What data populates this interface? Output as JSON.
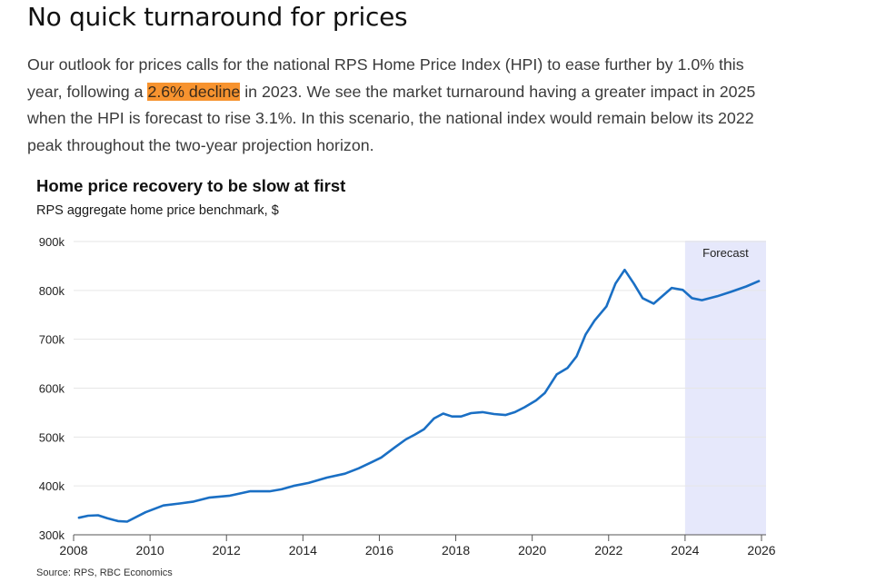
{
  "article": {
    "headline": "No quick turnaround for prices",
    "paragraph": {
      "before": "Our outlook for prices calls for the national RPS Home Price Index (HPI) to ease further by 1.0% this year, following a ",
      "highlight": "2.6% decline",
      "after": " in 2023. We see the market turnaround having a greater impact in 2025 when the HPI is forecast to rise 3.1%. In this scenario, the national index would remain below its 2022 peak throughout the two-year projection horizon."
    },
    "highlight_color": "#F7932F"
  },
  "chart_data": {
    "type": "line",
    "title": "Home price recovery to be slow at first",
    "subtitle": "RPS aggregate home price benchmark, $",
    "source": "Source: RPS, RBC Economics",
    "xlabel": "",
    "ylabel": "",
    "xlim": [
      2008,
      2026
    ],
    "ylim": [
      300000,
      900000
    ],
    "x_ticks": [
      2008,
      2010,
      2012,
      2014,
      2016,
      2018,
      2020,
      2022,
      2024,
      2026
    ],
    "x_tick_labels": [
      "2008",
      "2010",
      "2012",
      "2014",
      "2016",
      "2018",
      "2020",
      "2022",
      "2024",
      "2026"
    ],
    "y_ticks": [
      300000,
      400000,
      500000,
      600000,
      700000,
      800000,
      900000
    ],
    "y_tick_labels": [
      "300k",
      "400k",
      "500k",
      "600k",
      "700k",
      "800k",
      "900k"
    ],
    "grid": true,
    "legend": "none",
    "line_color": "#1A6FC4",
    "forecast": {
      "label": "Forecast",
      "start": 2024.0,
      "end": 2026.1,
      "color": "#E6E8FB"
    },
    "series": [
      {
        "name": "RPS aggregate home price benchmark",
        "x": [
          2008.14,
          2008.38,
          2008.64,
          2008.88,
          2009.16,
          2009.4,
          2009.88,
          2010.35,
          2010.78,
          2011.14,
          2011.54,
          2012.09,
          2012.61,
          2013.13,
          2013.44,
          2013.75,
          2014.15,
          2014.63,
          2015.1,
          2015.46,
          2015.81,
          2016.05,
          2016.41,
          2016.69,
          2016.93,
          2017.17,
          2017.43,
          2017.67,
          2017.9,
          2018.14,
          2018.4,
          2018.7,
          2019.0,
          2019.3,
          2019.55,
          2019.8,
          2020.1,
          2020.33,
          2020.64,
          2020.92,
          2021.16,
          2021.4,
          2021.63,
          2021.94,
          2022.18,
          2022.42,
          2022.66,
          2022.89,
          2023.18,
          2023.65,
          2023.94,
          2024.18,
          2024.44,
          2024.84,
          2025.2,
          2025.6,
          2025.93
        ],
        "values": [
          335000,
          339000,
          340000,
          334000,
          328000,
          327000,
          346000,
          360000,
          364000,
          368000,
          376000,
          380000,
          389000,
          389000,
          393000,
          400000,
          406000,
          417000,
          425000,
          436000,
          449000,
          458000,
          479000,
          495000,
          505000,
          516000,
          538000,
          548000,
          542000,
          542000,
          549000,
          551000,
          547000,
          545000,
          551000,
          561000,
          575000,
          590000,
          628000,
          641000,
          665000,
          710000,
          738000,
          767000,
          814000,
          842000,
          814000,
          784000,
          773000,
          805000,
          801000,
          784000,
          780000,
          788000,
          797000,
          808000,
          819000
        ]
      }
    ]
  }
}
